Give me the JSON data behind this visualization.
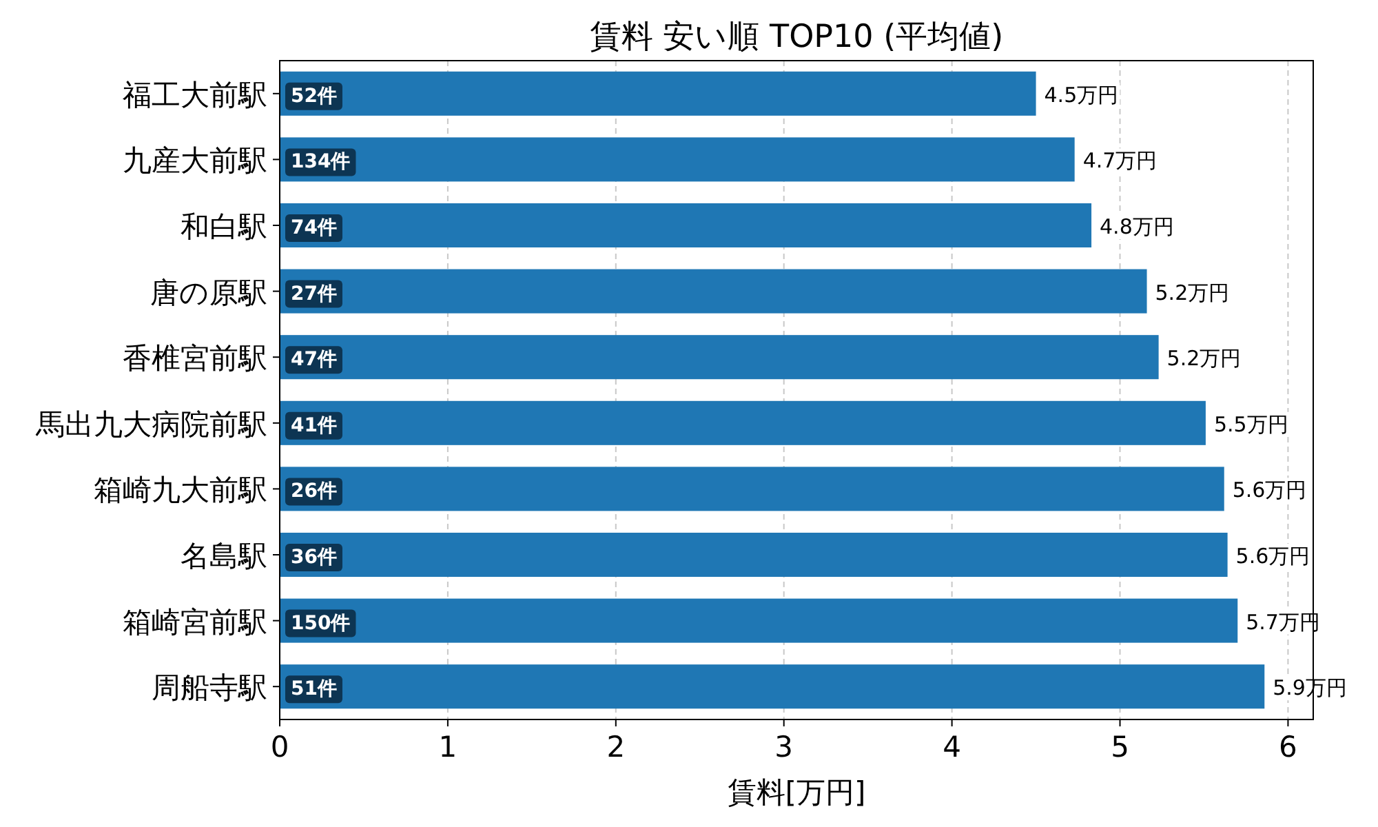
{
  "chart_data": {
    "type": "bar",
    "orientation": "horizontal",
    "title": "賃料 安い順 TOP10 (平均値)",
    "xlabel": "賃料[万円]",
    "categories": [
      "福工大前駅",
      "九産大前駅",
      "和白駅",
      "唐の原駅",
      "香椎宮前駅",
      "馬出九大病院前駅",
      "箱崎九大前駅",
      "名島駅",
      "箱崎宮前駅",
      "周船寺駅"
    ],
    "values": [
      4.5,
      4.73,
      4.83,
      5.16,
      5.23,
      5.51,
      5.62,
      5.64,
      5.7,
      5.86
    ],
    "value_labels": [
      "4.5万円",
      "4.7万円",
      "4.8万円",
      "5.2万円",
      "5.2万円",
      "5.5万円",
      "5.6万円",
      "5.6万円",
      "5.7万円",
      "5.9万円"
    ],
    "color": "#1f77b4",
    "annotations": [
      "52件",
      "134件",
      "74件",
      "27件",
      "47件",
      "41件",
      "26件",
      "36件",
      "150件",
      "51件"
    ],
    "xlim": [
      0,
      6.15
    ],
    "xticks": [
      0,
      1,
      2,
      3,
      4,
      5,
      6
    ],
    "grid": "x"
  }
}
